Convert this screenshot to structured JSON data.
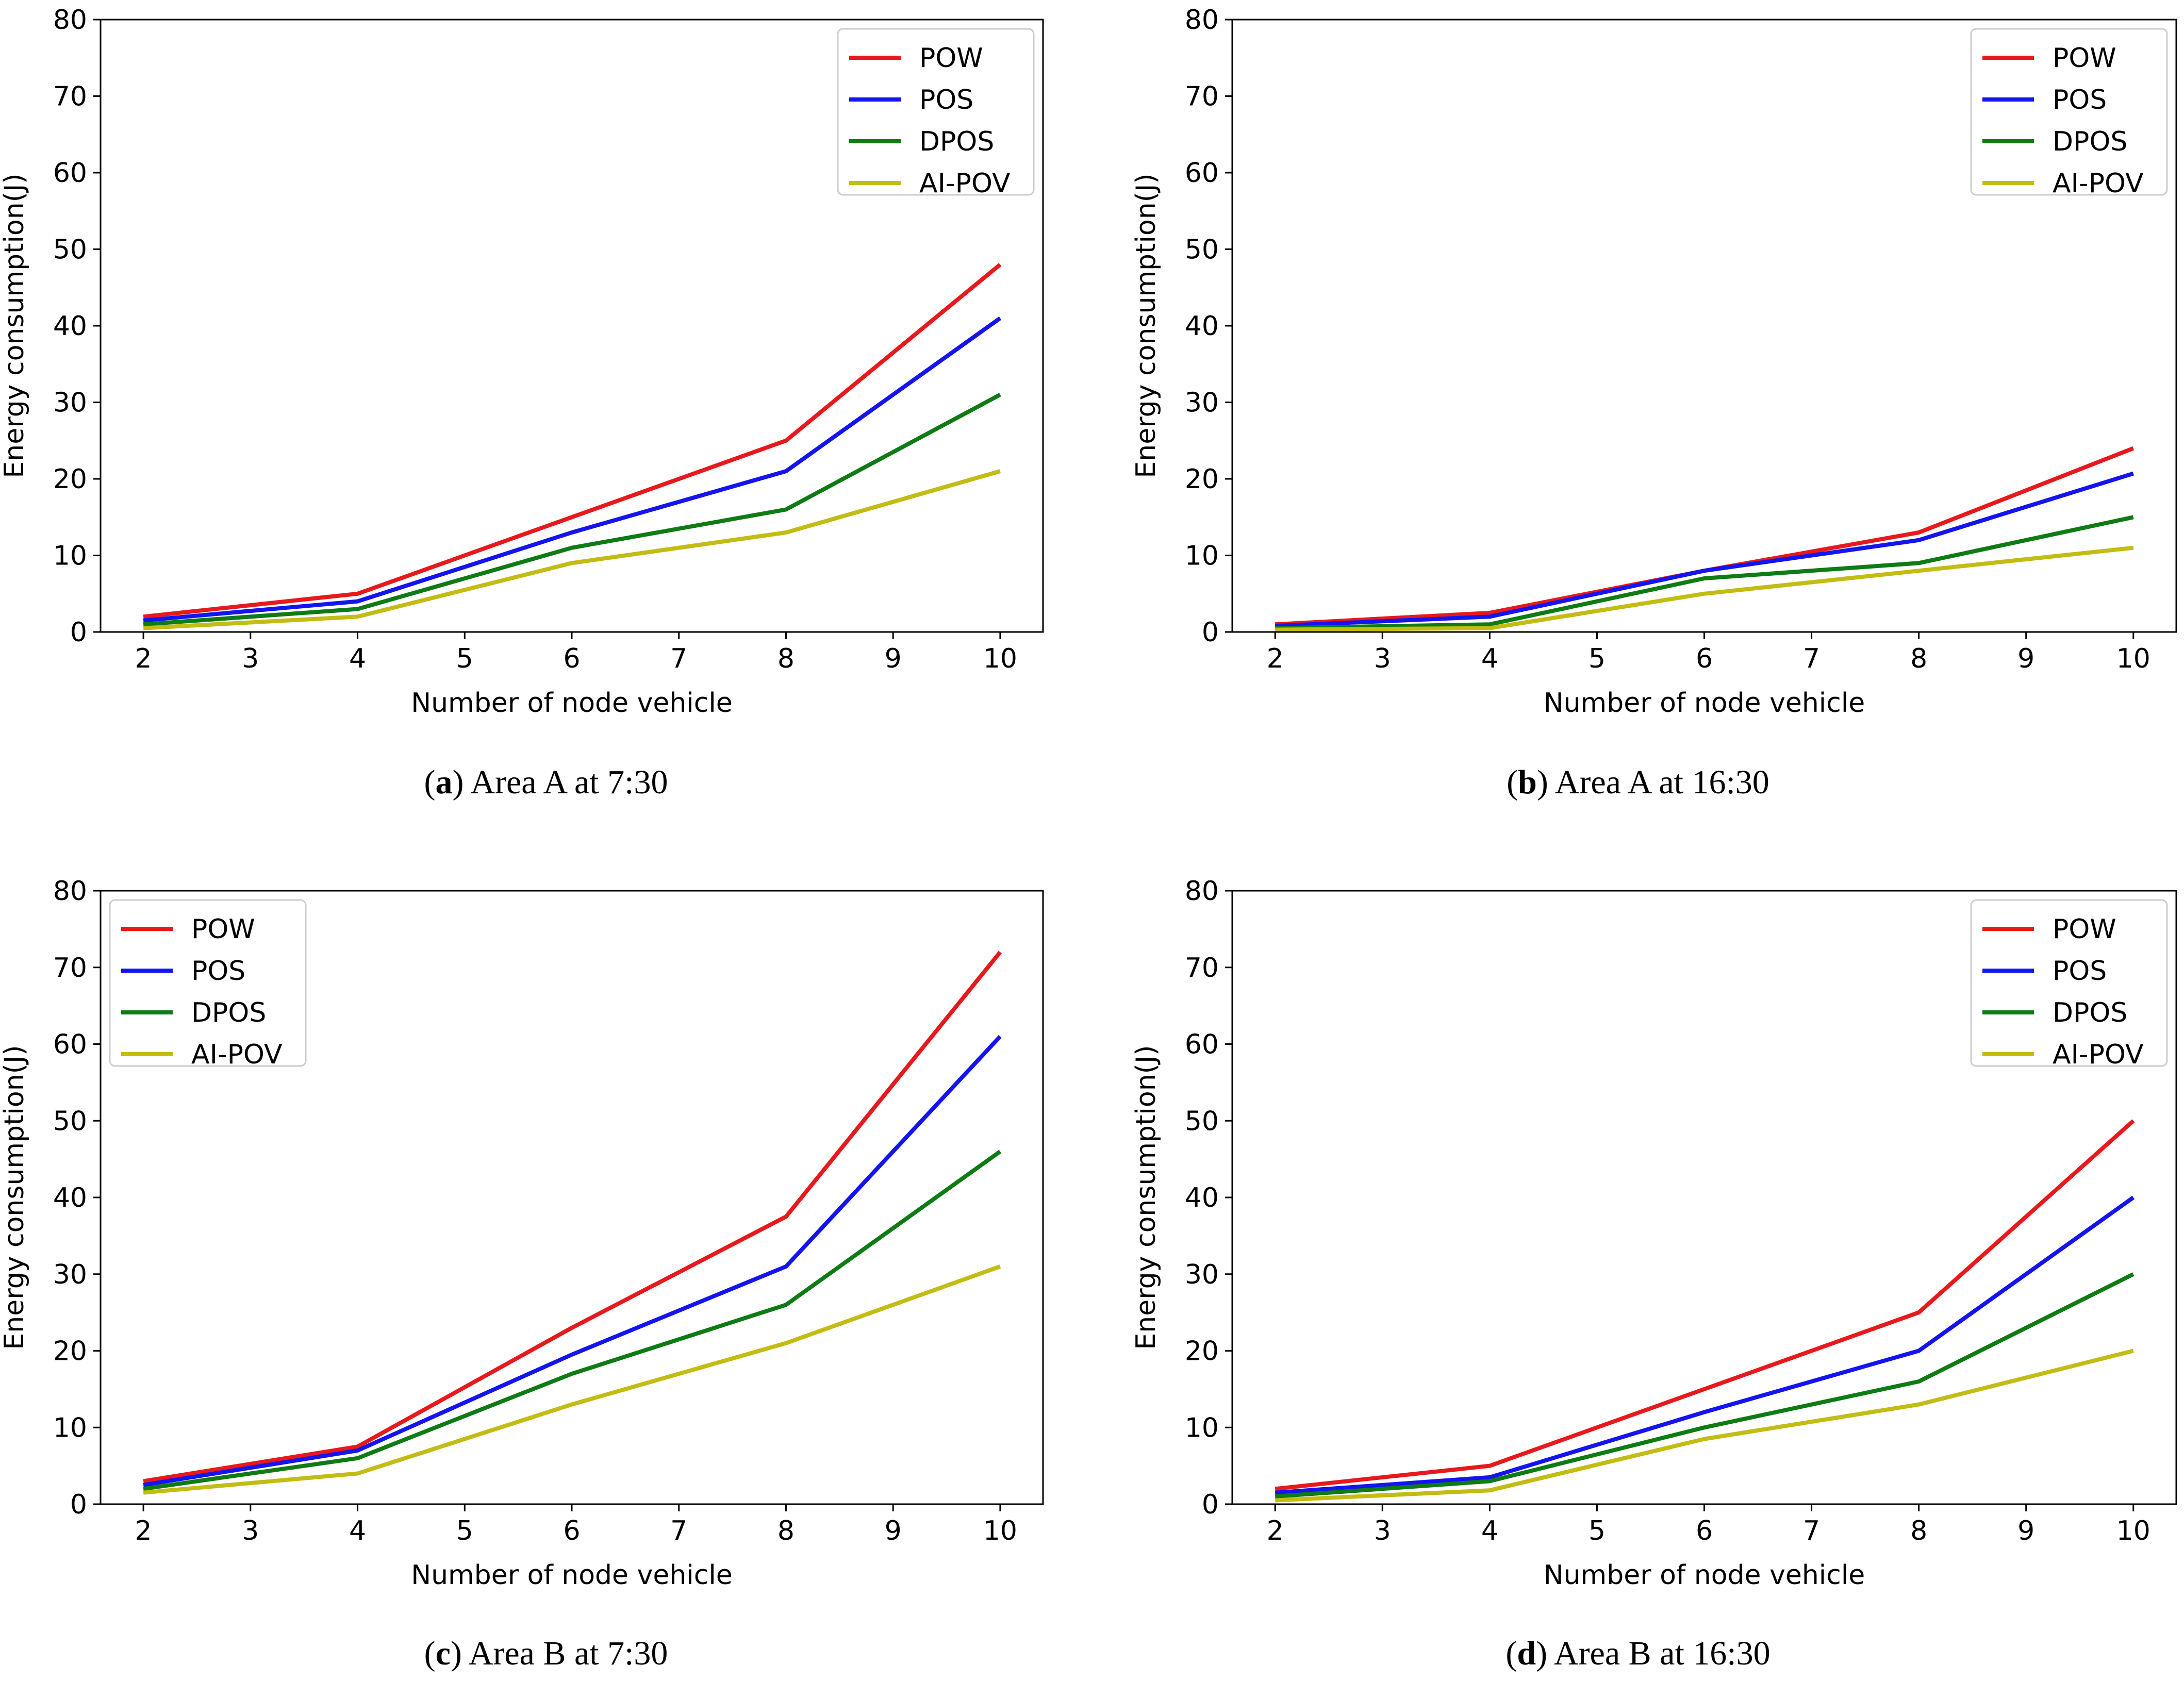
{
  "chart_data": [
    {
      "type": "line",
      "caption_letter": "a",
      "caption_text": "Area A at 7:30",
      "xlabel": "Number of node vehicle",
      "ylabel": "Energy consumption(J)",
      "xlim": [
        1.6,
        10.4
      ],
      "ylim": [
        0,
        80
      ],
      "xticks": [
        2,
        3,
        4,
        5,
        6,
        7,
        8,
        9,
        10
      ],
      "yticks": [
        0,
        10,
        20,
        30,
        40,
        50,
        60,
        70,
        80
      ],
      "legend_position": "top-right",
      "x": [
        2,
        4,
        6,
        8,
        10
      ],
      "series": [
        {
          "name": "POW",
          "color": "#e8191c",
          "values": [
            2,
            5,
            15,
            25,
            48
          ]
        },
        {
          "name": "POS",
          "color": "#1414f0",
          "values": [
            1.5,
            4,
            13,
            21,
            41
          ]
        },
        {
          "name": "DPOS",
          "color": "#0e7b14",
          "values": [
            1,
            3,
            11,
            16,
            31
          ]
        },
        {
          "name": "AI-POV",
          "color": "#c2bc13",
          "values": [
            0.5,
            2,
            9,
            13,
            21
          ]
        }
      ]
    },
    {
      "type": "line",
      "caption_letter": "b",
      "caption_text": "Area A at 16:30",
      "xlabel": "Number of node vehicle",
      "ylabel": "Energy consumption(J)",
      "xlim": [
        1.6,
        10.4
      ],
      "ylim": [
        0,
        80
      ],
      "xticks": [
        2,
        3,
        4,
        5,
        6,
        7,
        8,
        9,
        10
      ],
      "yticks": [
        0,
        10,
        20,
        30,
        40,
        50,
        60,
        70,
        80
      ],
      "legend_position": "top-right",
      "x": [
        2,
        4,
        6,
        8,
        10
      ],
      "series": [
        {
          "name": "POW",
          "color": "#e8191c",
          "values": [
            1,
            2.5,
            8,
            13,
            24
          ]
        },
        {
          "name": "POS",
          "color": "#1414f0",
          "values": [
            0.8,
            2,
            8,
            12,
            20.7
          ]
        },
        {
          "name": "DPOS",
          "color": "#0e7b14",
          "values": [
            0.5,
            1,
            7,
            9,
            15
          ]
        },
        {
          "name": "AI-POV",
          "color": "#c2bc13",
          "values": [
            0.3,
            0.5,
            5,
            8,
            11
          ]
        }
      ]
    },
    {
      "type": "line",
      "caption_letter": "c",
      "caption_text": "Area B at 7:30",
      "xlabel": "Number of node vehicle",
      "ylabel": "Energy consumption(J)",
      "xlim": [
        1.6,
        10.4
      ],
      "ylim": [
        0,
        80
      ],
      "xticks": [
        2,
        3,
        4,
        5,
        6,
        7,
        8,
        9,
        10
      ],
      "yticks": [
        0,
        10,
        20,
        30,
        40,
        50,
        60,
        70,
        80
      ],
      "legend_position": "top-left",
      "x": [
        2,
        4,
        6,
        8,
        10
      ],
      "series": [
        {
          "name": "POW",
          "color": "#e8191c",
          "values": [
            3,
            7.5,
            23,
            37.5,
            72
          ]
        },
        {
          "name": "POS",
          "color": "#1414f0",
          "values": [
            2.5,
            7,
            19.5,
            31,
            61
          ]
        },
        {
          "name": "DPOS",
          "color": "#0e7b14",
          "values": [
            2,
            6,
            17,
            26,
            46
          ]
        },
        {
          "name": "AI-POV",
          "color": "#c2bc13",
          "values": [
            1.5,
            4,
            13,
            21,
            31
          ]
        }
      ]
    },
    {
      "type": "line",
      "caption_letter": "d",
      "caption_text": "Area B at 16:30",
      "xlabel": "Number of node vehicle",
      "ylabel": "Energy consumption(J)",
      "xlim": [
        1.6,
        10.4
      ],
      "ylim": [
        0,
        80
      ],
      "xticks": [
        2,
        3,
        4,
        5,
        6,
        7,
        8,
        9,
        10
      ],
      "yticks": [
        0,
        10,
        20,
        30,
        40,
        50,
        60,
        70,
        80
      ],
      "legend_position": "top-right",
      "x": [
        2,
        4,
        6,
        8,
        10
      ],
      "series": [
        {
          "name": "POW",
          "color": "#e8191c",
          "values": [
            2,
            5,
            15,
            25,
            50
          ]
        },
        {
          "name": "POS",
          "color": "#1414f0",
          "values": [
            1.5,
            3.5,
            12,
            20,
            40
          ]
        },
        {
          "name": "DPOS",
          "color": "#0e7b14",
          "values": [
            1,
            3,
            10,
            16,
            30
          ]
        },
        {
          "name": "AI-POV",
          "color": "#c2bc13",
          "values": [
            0.5,
            1.8,
            8.5,
            13,
            20
          ]
        }
      ]
    }
  ]
}
